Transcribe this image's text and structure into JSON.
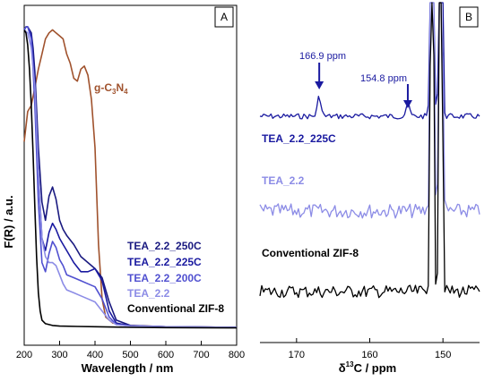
{
  "chart_data": [
    {
      "panel": "A",
      "type": "line",
      "xlabel": "Wavelength / nm",
      "ylabel": "F(R) / a.u.",
      "xlim": [
        200,
        800
      ],
      "ylim": [
        0,
        1
      ],
      "xticks": [
        200,
        300,
        400,
        500,
        600,
        700,
        800
      ],
      "series": [
        {
          "name": "g-C3N4",
          "color": "#a0522d",
          "x": [
            200,
            210,
            220,
            230,
            240,
            250,
            260,
            270,
            280,
            290,
            300,
            310,
            320,
            330,
            340,
            350,
            360,
            370,
            380,
            390,
            400,
            410,
            420,
            430,
            450,
            500,
            600,
            800
          ],
          "y": [
            0.62,
            0.72,
            0.74,
            0.8,
            0.86,
            0.91,
            0.96,
            0.98,
            0.99,
            0.98,
            0.97,
            0.96,
            0.91,
            0.88,
            0.83,
            0.82,
            0.86,
            0.87,
            0.84,
            0.76,
            0.6,
            0.28,
            0.1,
            0.04,
            0.02,
            0.012,
            0.008,
            0.006
          ]
        },
        {
          "name": "TEA_2.2_250C",
          "color": "#1a1a80",
          "x": [
            200,
            205,
            210,
            220,
            225,
            230,
            240,
            250,
            260,
            270,
            280,
            290,
            300,
            310,
            320,
            340,
            360,
            380,
            400,
            420,
            440,
            460,
            500,
            600,
            800
          ],
          "y": [
            0.99,
            1.0,
            1.0,
            0.98,
            0.93,
            0.85,
            0.6,
            0.42,
            0.36,
            0.44,
            0.47,
            0.43,
            0.36,
            0.33,
            0.31,
            0.28,
            0.24,
            0.22,
            0.2,
            0.17,
            0.09,
            0.03,
            0.012,
            0.008,
            0.006
          ]
        },
        {
          "name": "TEA_2.2_225C",
          "color": "#1a1aa0",
          "x": [
            200,
            205,
            210,
            220,
            225,
            230,
            240,
            250,
            260,
            270,
            280,
            290,
            300,
            310,
            320,
            340,
            360,
            380,
            400,
            420,
            440,
            460,
            500,
            600,
            800
          ],
          "y": [
            0.99,
            1.0,
            1.0,
            0.97,
            0.9,
            0.8,
            0.52,
            0.3,
            0.26,
            0.32,
            0.35,
            0.33,
            0.3,
            0.28,
            0.26,
            0.22,
            0.19,
            0.19,
            0.2,
            0.16,
            0.06,
            0.02,
            0.011,
            0.008,
            0.006
          ]
        },
        {
          "name": "TEA_2.2_200C",
          "color": "#5050d0",
          "x": [
            200,
            205,
            210,
            220,
            225,
            230,
            240,
            250,
            260,
            270,
            280,
            290,
            300,
            310,
            320,
            340,
            360,
            380,
            400,
            420,
            440,
            460,
            500,
            600,
            800
          ],
          "y": [
            0.99,
            1.0,
            1.0,
            0.96,
            0.86,
            0.74,
            0.42,
            0.22,
            0.19,
            0.25,
            0.29,
            0.27,
            0.23,
            0.21,
            0.18,
            0.17,
            0.16,
            0.15,
            0.14,
            0.1,
            0.04,
            0.015,
            0.01,
            0.008,
            0.006
          ]
        },
        {
          "name": "TEA_2.2",
          "color": "#8c8ce6",
          "x": [
            200,
            210,
            220,
            230,
            240,
            250,
            260,
            270,
            280,
            290,
            300,
            310,
            320,
            340,
            360,
            380,
            400,
            420,
            440,
            460,
            500,
            600,
            800
          ],
          "y": [
            0.99,
            0.98,
            0.93,
            0.8,
            0.52,
            0.3,
            0.24,
            0.22,
            0.22,
            0.21,
            0.18,
            0.15,
            0.13,
            0.12,
            0.11,
            0.1,
            0.09,
            0.06,
            0.03,
            0.015,
            0.01,
            0.008,
            0.006
          ]
        },
        {
          "name": "Conventional ZIF-8",
          "color": "#000000",
          "x": [
            200,
            205,
            210,
            215,
            220,
            225,
            230,
            235,
            240,
            245,
            250,
            260,
            280,
            300,
            350,
            400,
            500,
            600,
            800
          ],
          "y": [
            0.99,
            0.98,
            0.94,
            0.86,
            0.74,
            0.58,
            0.4,
            0.24,
            0.12,
            0.06,
            0.03,
            0.018,
            0.012,
            0.01,
            0.009,
            0.008,
            0.006,
            0.005,
            0.004
          ]
        }
      ],
      "labels": {
        "gcn_base": "g-C",
        "gcn_sub1": "3",
        "gcn_mid": "N",
        "gcn_sub2": "4",
        "s250": "TEA_2.2_250C",
        "s225": "TEA_2.2_225C",
        "s200": "TEA_2.2_200C",
        "s22": "TEA_2.2",
        "conv": "Conventional ZIF-8"
      }
    },
    {
      "panel": "B",
      "type": "line",
      "xlabel_pre": "δ",
      "xlabel_sup": "13",
      "xlabel_post": "C / ppm",
      "xlim": [
        175,
        145
      ],
      "xticks": [
        170,
        160,
        150
      ],
      "series": [
        {
          "name": "TEA_2.2_225C",
          "color": "#1a1aa0",
          "offset": 0.62,
          "peaks": [
            166.9,
            154.8
          ]
        },
        {
          "name": "TEA_2.2",
          "color": "#8c8ce6",
          "offset": 0.36
        },
        {
          "name": "Conventional ZIF-8",
          "color": "#000000",
          "offset": 0.1
        }
      ],
      "annotations": [
        "166.9 ppm",
        "154.8 ppm"
      ],
      "labels": {
        "top": "TEA_2.2_225C",
        "mid": "TEA_2.2",
        "bot": "Conventional ZIF-8"
      }
    }
  ],
  "panel_a_label": "A",
  "panel_b_label": "B"
}
